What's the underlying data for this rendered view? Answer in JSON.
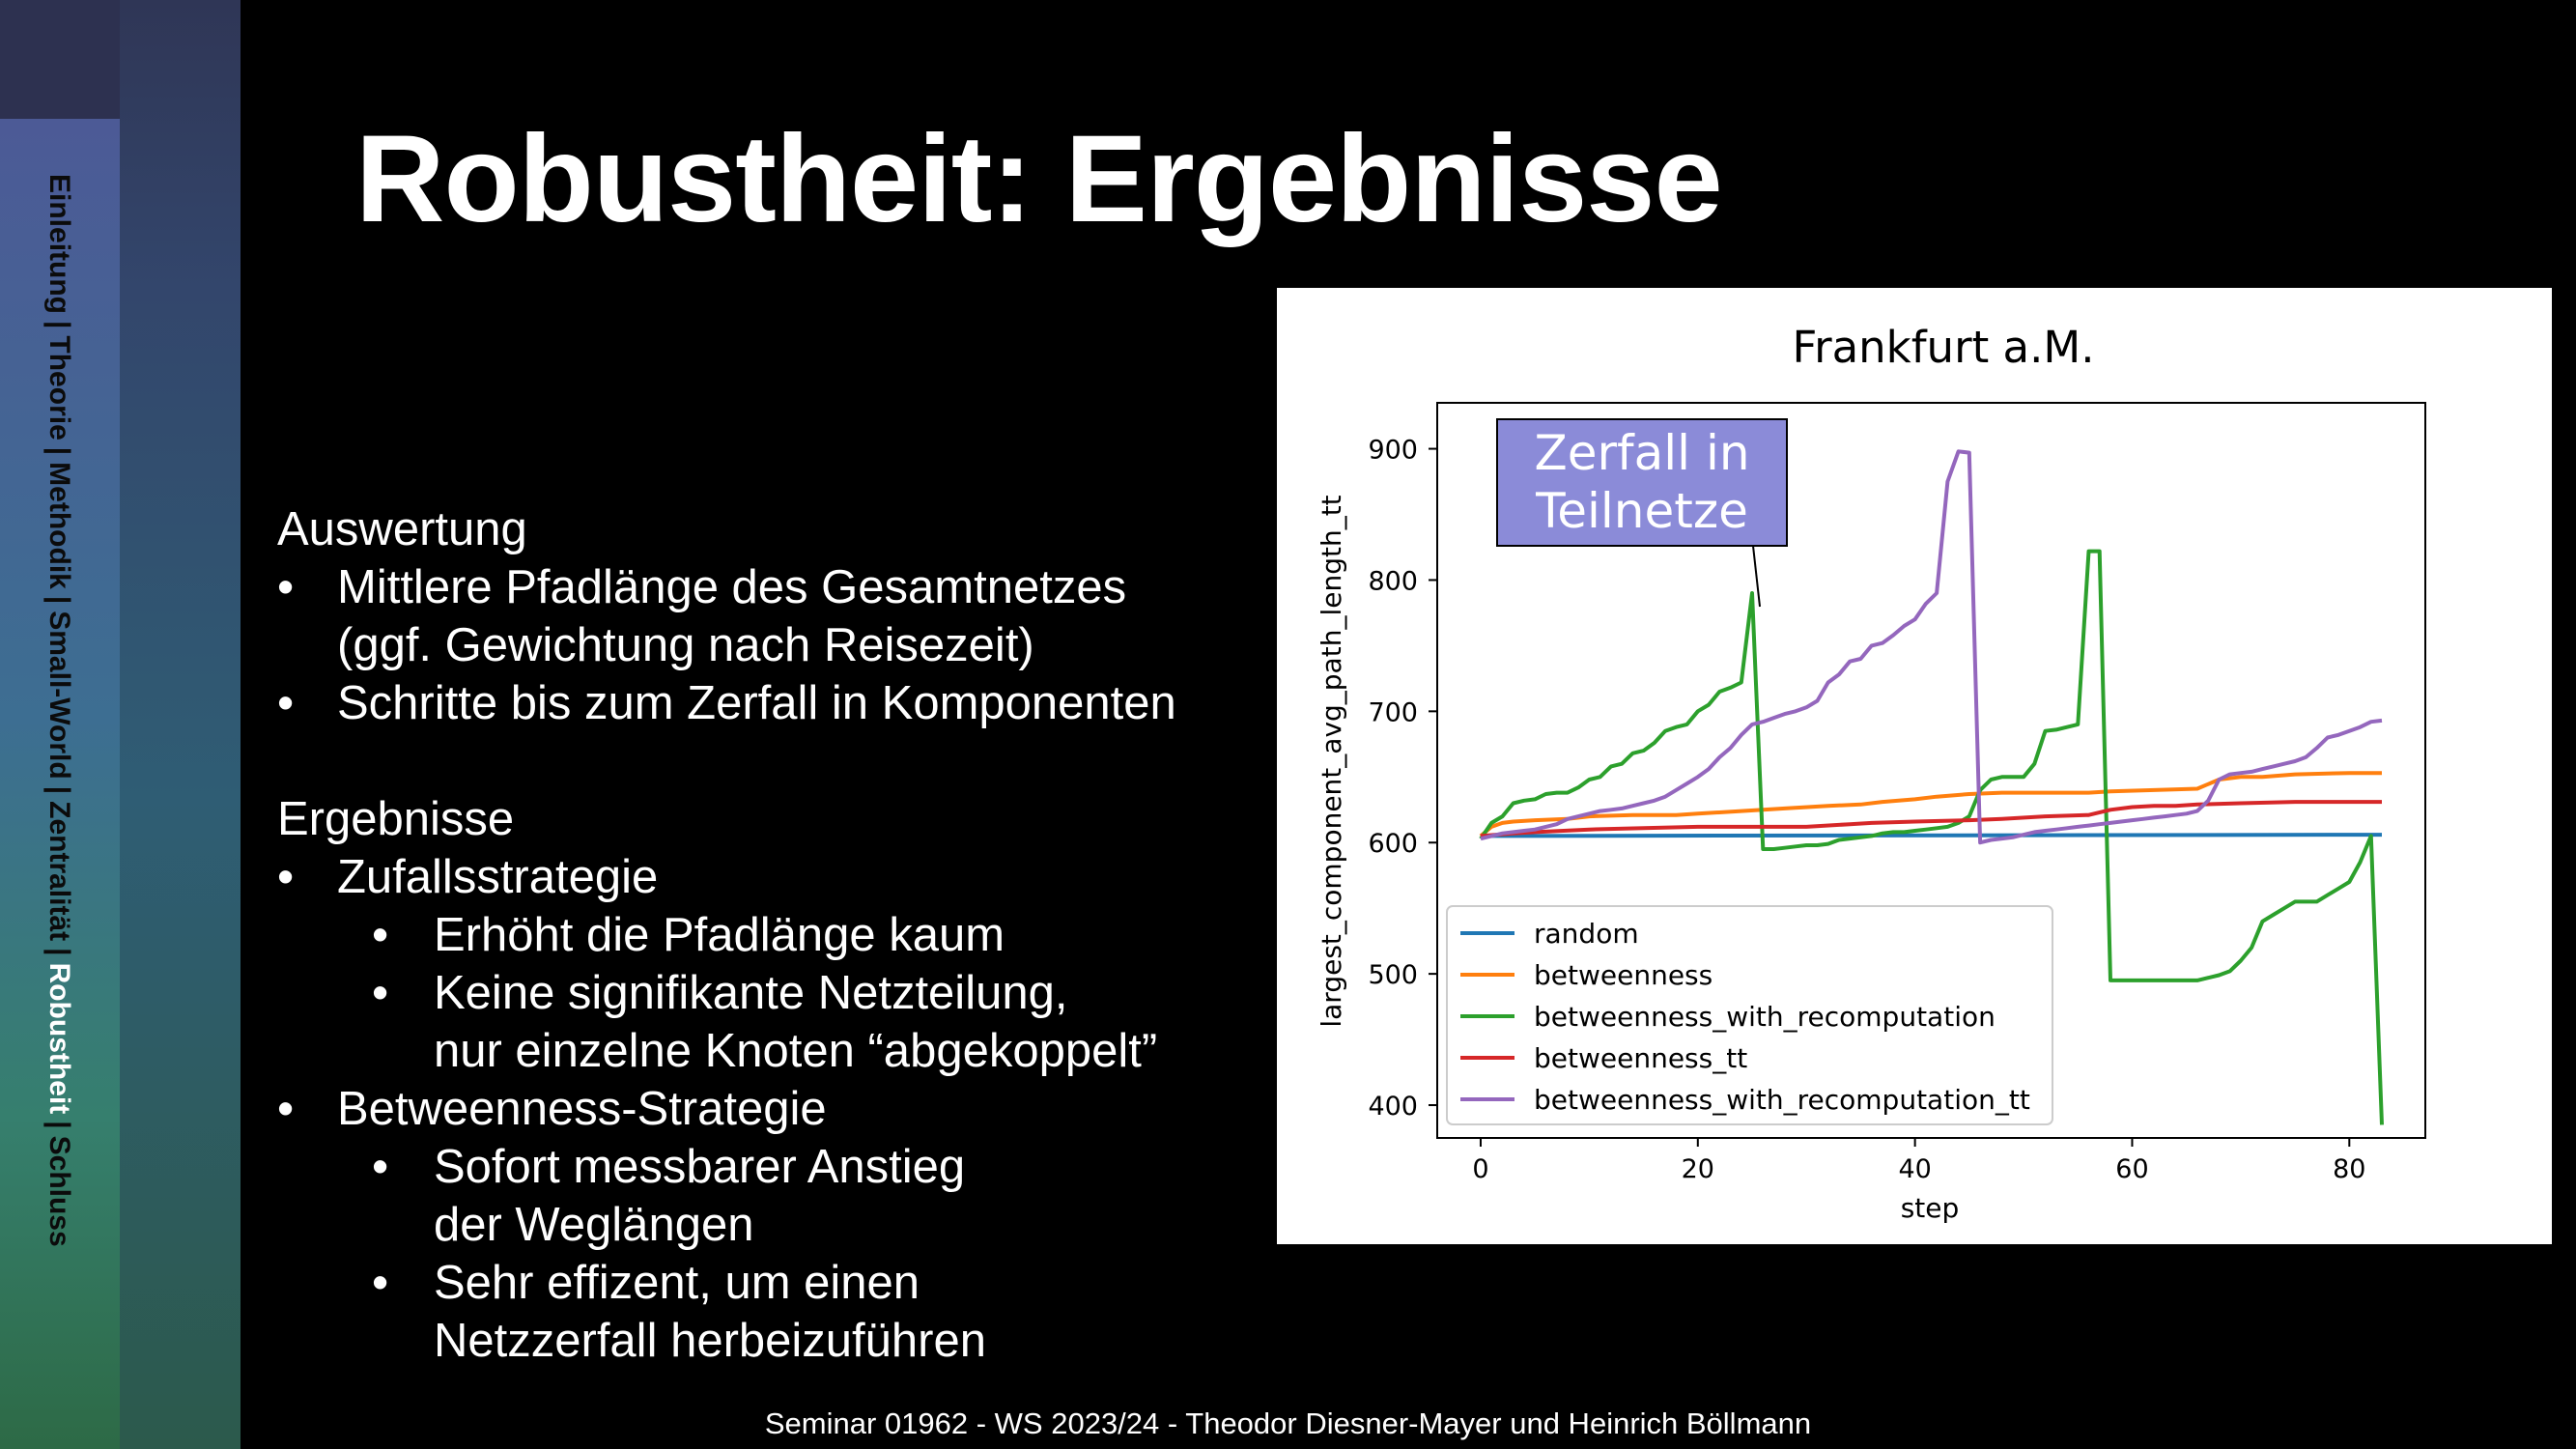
{
  "sidebar": {
    "items": [
      "Einleitung",
      "Theorie",
      "Methodik",
      "Small-World",
      "Zentralität",
      "Robustheit",
      "Schluss"
    ],
    "separator": "|",
    "active_index": 5
  },
  "slide": {
    "title": "Robustheit: Ergebnisse",
    "section1_heading": "Auswertung",
    "section1_items": [
      "Mittlere Pfadlänge des Gesamtnetzes",
      "(ggf. Gewichtung nach Reisezeit)",
      "Schritte bis zum Zerfall in Komponenten"
    ],
    "section2_heading": "Ergebnisse",
    "strategy1": "Zufallsstrategie",
    "strategy1_points": [
      "Erhöht die Pfadlänge kaum",
      "Keine signifikante Netzteilung,",
      "nur einzelne Knoten “abgekoppelt”"
    ],
    "strategy2": "Betweenness-Strategie",
    "strategy2_points": [
      "Sofort messbarer Anstieg",
      "der Weglängen",
      "Sehr effizent, um einen",
      "Netzzerfall herbeizuführen"
    ],
    "footer": "Seminar 01962 - WS 2023/24 - Theodor Diesner-Mayer und Heinrich Böllmann"
  },
  "colors": {
    "random": "#1f77b4",
    "betweenness": "#ff7f0e",
    "betweenness_with_recomputation": "#2ca02c",
    "betweenness_tt": "#d62728",
    "betweenness_with_recomputation_tt": "#9467bd",
    "annotation_bg": "#8b8bd8"
  },
  "chart_data": {
    "type": "line",
    "title": "Frankfurt a.M.",
    "xlabel": "step",
    "ylabel": "largest_component_avg_path_length_tt",
    "xlim": [
      -4,
      87
    ],
    "ylim": [
      375,
      935
    ],
    "xticks": [
      0,
      20,
      40,
      60,
      80
    ],
    "yticks": [
      400,
      500,
      600,
      700,
      800,
      900
    ],
    "legend_position": "lower-left",
    "annotation": {
      "text": [
        "Zerfall in",
        "Teilnetze"
      ],
      "points_to": [
        25,
        790
      ]
    },
    "series": [
      {
        "name": "random",
        "x": [
          0,
          83
        ],
        "y": [
          605,
          606
        ]
      },
      {
        "name": "betweenness",
        "x": [
          0,
          1,
          2,
          3,
          5,
          8,
          10,
          14,
          18,
          20,
          24,
          28,
          32,
          35,
          37,
          40,
          42,
          45,
          48,
          52,
          56,
          58,
          62,
          66,
          68,
          70,
          72,
          75,
          80,
          83
        ],
        "y": [
          605,
          612,
          615,
          616,
          617,
          618,
          620,
          621,
          621,
          622,
          624,
          626,
          628,
          629,
          631,
          633,
          635,
          637,
          638,
          638,
          638,
          639,
          640,
          641,
          648,
          650,
          650,
          652,
          653,
          653
        ]
      },
      {
        "name": "betweenness_with_recomputation",
        "x": [
          0,
          1,
          2,
          3,
          4,
          5,
          6,
          7,
          8,
          9,
          10,
          11,
          12,
          13,
          14,
          15,
          16,
          17,
          18,
          19,
          20,
          21,
          22,
          23,
          24,
          25,
          26,
          27,
          28,
          29,
          30,
          31,
          32,
          33,
          34,
          35,
          36,
          37,
          38,
          39,
          40,
          41,
          42,
          43,
          44,
          45,
          46,
          47,
          48,
          49,
          50,
          51,
          52,
          53,
          54,
          55,
          56,
          57,
          58,
          59,
          60,
          61,
          62,
          63,
          64,
          65,
          66,
          67,
          68,
          69,
          70,
          71,
          72,
          73,
          74,
          75,
          76,
          77,
          78,
          79,
          80,
          81,
          82,
          83
        ],
        "y": [
          603,
          615,
          620,
          630,
          632,
          633,
          637,
          638,
          638,
          642,
          648,
          650,
          658,
          660,
          668,
          670,
          676,
          685,
          688,
          690,
          700,
          705,
          715,
          718,
          722,
          790,
          595,
          595,
          596,
          597,
          598,
          598,
          599,
          602,
          603,
          604,
          605,
          607,
          608,
          608,
          609,
          610,
          611,
          612,
          615,
          620,
          640,
          648,
          650,
          650,
          650,
          660,
          685,
          686,
          688,
          690,
          822,
          822,
          495,
          495,
          495,
          495,
          495,
          495,
          495,
          495,
          495,
          497,
          499,
          502,
          510,
          520,
          540,
          545,
          550,
          555,
          555,
          555,
          560,
          565,
          570,
          585,
          605,
          385
        ]
      },
      {
        "name": "betweenness_tt",
        "x": [
          0,
          3,
          5,
          10,
          15,
          20,
          25,
          30,
          34,
          36,
          40,
          45,
          48,
          52,
          56,
          58,
          60,
          62,
          64,
          66,
          70,
          75,
          83
        ],
        "y": [
          605,
          607,
          608,
          610,
          611,
          612,
          612,
          612,
          614,
          615,
          616,
          617,
          618,
          620,
          621,
          625,
          627,
          628,
          628,
          629,
          630,
          631,
          631
        ]
      },
      {
        "name": "betweenness_with_recomputation_tt",
        "x": [
          0,
          1,
          2,
          3,
          4,
          5,
          6,
          7,
          8,
          9,
          10,
          11,
          12,
          13,
          14,
          15,
          16,
          17,
          18,
          19,
          20,
          21,
          22,
          23,
          24,
          25,
          26,
          27,
          28,
          29,
          30,
          31,
          32,
          33,
          34,
          35,
          36,
          37,
          38,
          39,
          40,
          41,
          42,
          43,
          44,
          45,
          46,
          47,
          48,
          49,
          50,
          51,
          52,
          53,
          54,
          55,
          56,
          57,
          58,
          59,
          60,
          61,
          62,
          63,
          64,
          65,
          66,
          67,
          68,
          69,
          70,
          71,
          72,
          73,
          74,
          75,
          76,
          77,
          78,
          79,
          80,
          81,
          82,
          83
        ],
        "y": [
          603,
          605,
          607,
          608,
          609,
          610,
          612,
          614,
          618,
          620,
          622,
          624,
          625,
          626,
          628,
          630,
          632,
          635,
          640,
          645,
          650,
          656,
          665,
          672,
          682,
          690,
          692,
          695,
          698,
          700,
          703,
          708,
          722,
          728,
          738,
          740,
          750,
          752,
          758,
          765,
          770,
          782,
          790,
          875,
          898,
          897,
          600,
          602,
          603,
          604,
          606,
          608,
          609,
          610,
          611,
          612,
          613,
          614,
          615,
          616,
          617,
          618,
          619,
          620,
          621,
          622,
          624,
          632,
          648,
          652,
          653,
          654,
          656,
          658,
          660,
          662,
          665,
          672,
          680,
          682,
          685,
          688,
          692,
          693
        ]
      }
    ]
  }
}
